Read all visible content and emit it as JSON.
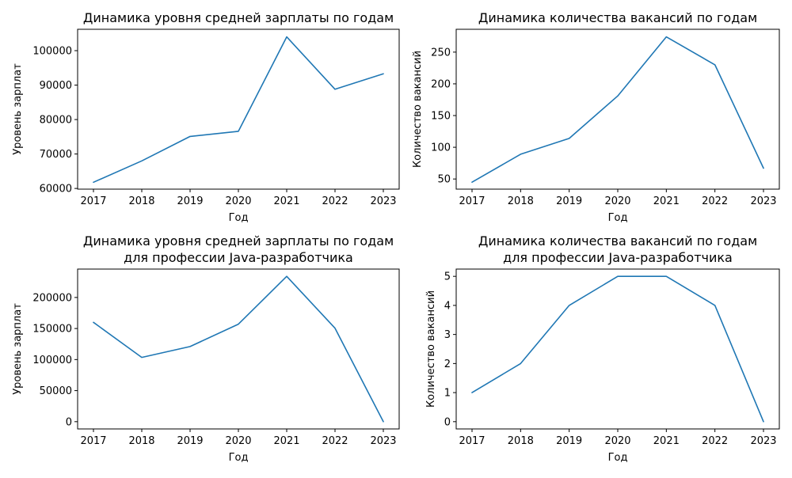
{
  "chart_data": [
    {
      "type": "line",
      "title_lines": [
        "Динамика уровня средней зарплаты по годам"
      ],
      "xlabel": "Год",
      "ylabel": "Уровень зарплат",
      "x": [
        2017,
        2018,
        2019,
        2020,
        2021,
        2022,
        2023
      ],
      "values": [
        61800,
        68000,
        75100,
        76600,
        104000,
        88800,
        93300
      ],
      "ylim": [
        59800,
        106200
      ],
      "yticks": [
        60000,
        70000,
        80000,
        90000,
        100000
      ],
      "grid": false,
      "color": "#1f77b4"
    },
    {
      "type": "line",
      "title_lines": [
        "Динамика количества вакансий по годам"
      ],
      "xlabel": "Год",
      "ylabel": "Количество вакансий",
      "x": [
        2017,
        2018,
        2019,
        2020,
        2021,
        2022,
        2023
      ],
      "values": [
        45,
        89,
        114,
        181,
        274,
        230,
        67
      ],
      "ylim": [
        34,
        286
      ],
      "yticks": [
        50,
        100,
        150,
        200,
        250
      ],
      "grid": false,
      "color": "#1f77b4"
    },
    {
      "type": "line",
      "title_lines": [
        "Динамика уровня средней зарплаты по годам",
        "для профессии Java-разработчика"
      ],
      "xlabel": "Год",
      "ylabel": "Уровень зарплат",
      "x": [
        2017,
        2018,
        2019,
        2020,
        2021,
        2022,
        2023
      ],
      "values": [
        160000,
        103500,
        121000,
        157000,
        234000,
        150500,
        0
      ],
      "ylim": [
        -11700,
        245700
      ],
      "yticks": [
        0,
        50000,
        100000,
        150000,
        200000
      ],
      "grid": false,
      "color": "#1f77b4"
    },
    {
      "type": "line",
      "title_lines": [
        "Динамика количества вакансий по годам",
        "для профессии Java-разработчика"
      ],
      "xlabel": "Год",
      "ylabel": "Количество вакансий",
      "x": [
        2017,
        2018,
        2019,
        2020,
        2021,
        2022,
        2023
      ],
      "values": [
        1,
        2,
        4,
        5,
        5,
        4,
        0
      ],
      "ylim": [
        -0.25,
        5.25
      ],
      "yticks": [
        0,
        1,
        2,
        3,
        4,
        5
      ],
      "grid": false,
      "color": "#1f77b4"
    }
  ]
}
